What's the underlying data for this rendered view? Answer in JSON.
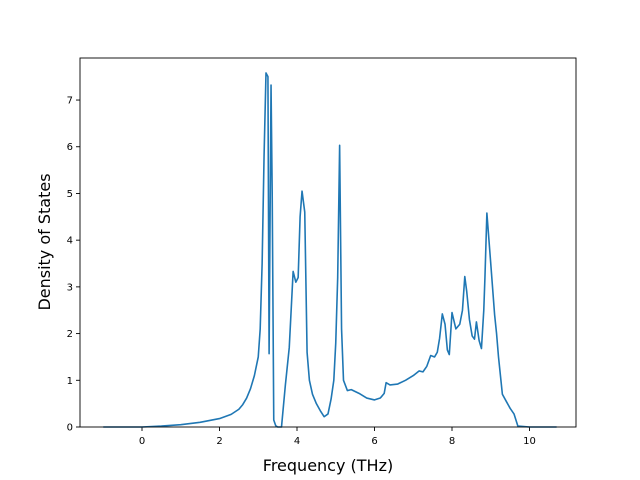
{
  "chart_data": {
    "type": "line",
    "title": "",
    "xlabel": "Frequency (THz)",
    "ylabel": "Density of States",
    "xlim": [
      -1.6,
      11.2
    ],
    "ylim": [
      0,
      7.9
    ],
    "xticks": [
      0,
      2,
      4,
      6,
      8,
      10
    ],
    "yticks": [
      0,
      1,
      2,
      3,
      4,
      5,
      6,
      7
    ],
    "grid": false,
    "legend": "none",
    "colors": {
      "line": "#1f77b4"
    },
    "series": [
      {
        "name": "",
        "x": [
          -1.0,
          -0.5,
          0.0,
          0.5,
          1.0,
          1.5,
          2.0,
          2.3,
          2.5,
          2.6,
          2.7,
          2.8,
          2.9,
          3.0,
          3.05,
          3.1,
          3.15,
          3.2,
          3.25,
          3.28,
          3.33,
          3.36,
          3.4,
          3.45,
          3.5,
          3.6,
          3.7,
          3.8,
          3.9,
          3.97,
          4.03,
          4.08,
          4.13,
          4.2,
          4.26,
          4.32,
          4.4,
          4.5,
          4.6,
          4.7,
          4.8,
          4.88,
          4.95,
          5.0,
          5.05,
          5.1,
          5.15,
          5.2,
          5.3,
          5.4,
          5.6,
          5.8,
          6.0,
          6.15,
          6.25,
          6.3,
          6.4,
          6.6,
          6.8,
          7.0,
          7.15,
          7.25,
          7.35,
          7.45,
          7.55,
          7.62,
          7.68,
          7.75,
          7.82,
          7.88,
          7.93,
          8.0,
          8.1,
          8.2,
          8.27,
          8.33,
          8.38,
          8.45,
          8.52,
          8.58,
          8.63,
          8.7,
          8.76,
          8.82,
          8.85,
          8.9,
          9.0,
          9.1,
          9.15,
          9.2,
          9.3,
          9.4,
          9.5,
          9.6,
          9.7,
          10.0,
          10.3,
          10.7
        ],
        "y": [
          0.0,
          0.0,
          0.0,
          0.02,
          0.05,
          0.1,
          0.18,
          0.27,
          0.38,
          0.48,
          0.62,
          0.82,
          1.1,
          1.5,
          2.1,
          3.5,
          5.8,
          7.58,
          7.5,
          1.57,
          7.32,
          5.0,
          0.15,
          0.03,
          0.0,
          0.0,
          0.9,
          1.7,
          3.33,
          3.1,
          3.2,
          4.5,
          5.05,
          4.6,
          1.6,
          1.0,
          0.7,
          0.5,
          0.35,
          0.22,
          0.28,
          0.6,
          1.0,
          1.8,
          3.2,
          6.03,
          2.1,
          1.0,
          0.78,
          0.8,
          0.72,
          0.62,
          0.58,
          0.62,
          0.72,
          0.95,
          0.9,
          0.92,
          1.0,
          1.1,
          1.2,
          1.18,
          1.3,
          1.53,
          1.5,
          1.6,
          1.9,
          2.42,
          2.2,
          1.65,
          1.55,
          2.45,
          2.1,
          2.2,
          2.5,
          3.22,
          2.9,
          2.3,
          1.95,
          1.88,
          2.25,
          1.85,
          1.68,
          2.5,
          3.2,
          4.58,
          3.5,
          2.4,
          2.0,
          1.5,
          0.7,
          0.55,
          0.4,
          0.28,
          0.02,
          0.0,
          0.0,
          0.0
        ]
      }
    ]
  }
}
